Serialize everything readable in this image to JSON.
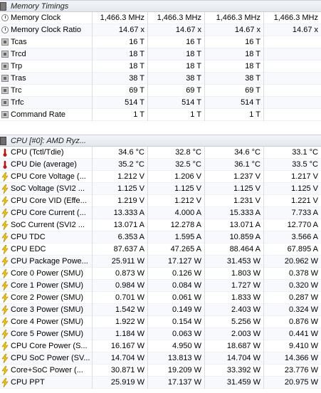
{
  "memory_section": {
    "title": "Memory Timings",
    "rows": [
      {
        "icon": "clock-icon",
        "label": "Memory Clock",
        "v": [
          "1,466.3 MHz",
          "1,466.3 MHz",
          "1,466.3 MHz",
          "1,466.3 MHz"
        ]
      },
      {
        "icon": "clock-icon",
        "label": "Memory Clock Ratio",
        "v": [
          "14.67 x",
          "14.67 x",
          "14.67 x",
          "14.67 x"
        ]
      },
      {
        "icon": "chip-icon",
        "label": "Tcas",
        "v": [
          "16 T",
          "16 T",
          "16 T",
          ""
        ]
      },
      {
        "icon": "chip-icon",
        "label": "Trcd",
        "v": [
          "18 T",
          "18 T",
          "18 T",
          ""
        ]
      },
      {
        "icon": "chip-icon",
        "label": "Trp",
        "v": [
          "18 T",
          "18 T",
          "18 T",
          ""
        ]
      },
      {
        "icon": "chip-icon",
        "label": "Tras",
        "v": [
          "38 T",
          "38 T",
          "38 T",
          ""
        ]
      },
      {
        "icon": "chip-icon",
        "label": "Trc",
        "v": [
          "69 T",
          "69 T",
          "69 T",
          ""
        ]
      },
      {
        "icon": "chip-icon",
        "label": "Trfc",
        "v": [
          "514 T",
          "514 T",
          "514 T",
          ""
        ]
      },
      {
        "icon": "chip-icon",
        "label": "Command Rate",
        "v": [
          "1 T",
          "1 T",
          "1 T",
          ""
        ]
      }
    ]
  },
  "cpu_section": {
    "title": "CPU [#0]: AMD Ryz...",
    "rows": [
      {
        "icon": "thermometer-icon",
        "label": "CPU (Tctl/Tdie)",
        "v": [
          "34.6 °C",
          "32.8 °C",
          "34.6 °C",
          "33.1 °C"
        ]
      },
      {
        "icon": "thermometer-icon",
        "label": "CPU Die (average)",
        "v": [
          "35.2 °C",
          "32.5 °C",
          "36.1 °C",
          "33.5 °C"
        ]
      },
      {
        "icon": "lightning-icon",
        "label": "CPU Core Voltage (...",
        "v": [
          "1.212 V",
          "1.206 V",
          "1.237 V",
          "1.217 V"
        ]
      },
      {
        "icon": "lightning-icon",
        "label": "SoC Voltage (SVI2 ...",
        "v": [
          "1.125 V",
          "1.125 V",
          "1.125 V",
          "1.125 V"
        ]
      },
      {
        "icon": "lightning-icon",
        "label": "CPU Core VID (Effe...",
        "v": [
          "1.219 V",
          "1.212 V",
          "1.231 V",
          "1.221 V"
        ]
      },
      {
        "icon": "lightning-icon",
        "label": "CPU Core Current (...",
        "v": [
          "13.333 A",
          "4.000 A",
          "15.333 A",
          "7.733 A"
        ]
      },
      {
        "icon": "lightning-icon",
        "label": "SoC Current (SVI2 ...",
        "v": [
          "13.071 A",
          "12.278 A",
          "13.071 A",
          "12.770 A"
        ]
      },
      {
        "icon": "lightning-icon",
        "label": "CPU TDC",
        "v": [
          "6.353 A",
          "1.595 A",
          "10.859 A",
          "3.566 A"
        ]
      },
      {
        "icon": "lightning-icon",
        "label": "CPU EDC",
        "v": [
          "87.637 A",
          "47.265 A",
          "88.464 A",
          "67.895 A"
        ]
      },
      {
        "icon": "lightning-icon",
        "label": "CPU Package Powe...",
        "v": [
          "25.911 W",
          "17.127 W",
          "31.453 W",
          "20.962 W"
        ]
      },
      {
        "icon": "lightning-icon",
        "label": "Core 0 Power (SMU)",
        "v": [
          "0.873 W",
          "0.126 W",
          "1.803 W",
          "0.378 W"
        ]
      },
      {
        "icon": "lightning-icon",
        "label": "Core 1 Power (SMU)",
        "v": [
          "0.984 W",
          "0.084 W",
          "1.727 W",
          "0.320 W"
        ]
      },
      {
        "icon": "lightning-icon",
        "label": "Core 2 Power (SMU)",
        "v": [
          "0.701 W",
          "0.061 W",
          "1.833 W",
          "0.287 W"
        ]
      },
      {
        "icon": "lightning-icon",
        "label": "Core 3 Power (SMU)",
        "v": [
          "1.542 W",
          "0.149 W",
          "2.403 W",
          "0.324 W"
        ]
      },
      {
        "icon": "lightning-icon",
        "label": "Core 4 Power (SMU)",
        "v": [
          "1.922 W",
          "0.154 W",
          "5.256 W",
          "0.876 W"
        ]
      },
      {
        "icon": "lightning-icon",
        "label": "Core 5 Power (SMU)",
        "v": [
          "1.184 W",
          "0.063 W",
          "2.003 W",
          "0.441 W"
        ]
      },
      {
        "icon": "lightning-icon",
        "label": "CPU Core Power (S...",
        "v": [
          "16.167 W",
          "4.950 W",
          "18.687 W",
          "9.410 W"
        ]
      },
      {
        "icon": "lightning-icon",
        "label": "CPU SoC Power (SV...",
        "v": [
          "14.704 W",
          "13.813 W",
          "14.704 W",
          "14.366 W"
        ]
      },
      {
        "icon": "lightning-icon",
        "label": "Core+SoC Power (...",
        "v": [
          "30.871 W",
          "19.209 W",
          "33.392 W",
          "23.776 W"
        ]
      },
      {
        "icon": "lightning-icon",
        "label": "CPU PPT",
        "v": [
          "25.919 W",
          "17.137 W",
          "31.459 W",
          "20.975 W"
        ]
      }
    ]
  }
}
